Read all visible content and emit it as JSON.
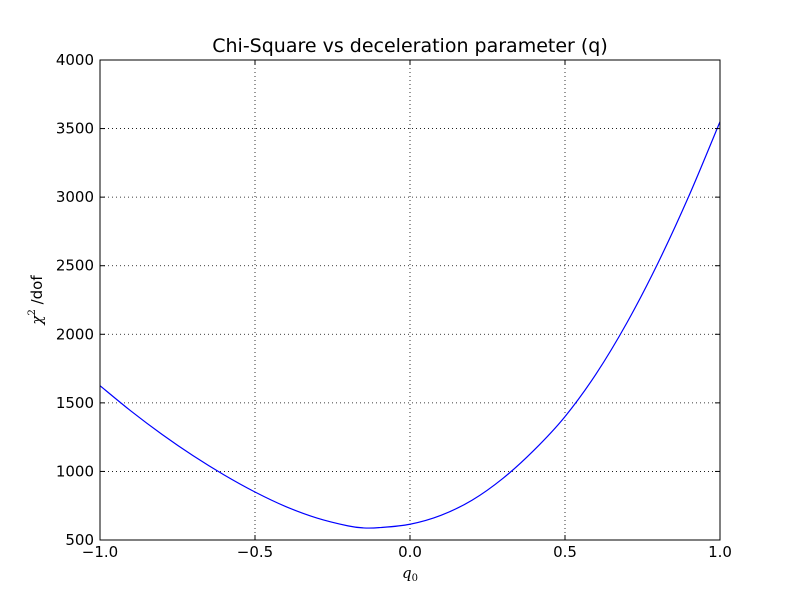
{
  "chart_data": {
    "type": "line",
    "title": "Chi-Square vs deceleration parameter (q)",
    "xlabel": {
      "symbol": "q",
      "subscript": "0"
    },
    "ylabel": {
      "symbol": "χ",
      "superscript": "2",
      "suffix": " /dof"
    },
    "xlim": [
      -1.0,
      1.0
    ],
    "ylim": [
      500,
      4000
    ],
    "xticks": [
      -1.0,
      -0.5,
      0.0,
      0.5,
      1.0
    ],
    "xtick_labels": [
      "−1.0",
      "−0.5",
      "0.0",
      "0.5",
      "1.0"
    ],
    "yticks": [
      500,
      1000,
      1500,
      2000,
      2500,
      3000,
      3500,
      4000
    ],
    "ytick_labels": [
      "500",
      "1000",
      "1500",
      "2000",
      "2500",
      "3000",
      "3500",
      "4000"
    ],
    "grid": true,
    "line_color": "#0000ff",
    "series": [
      {
        "x": [
          -1.0,
          -0.9,
          -0.8,
          -0.7,
          -0.6,
          -0.5,
          -0.4,
          -0.3,
          -0.2,
          -0.15,
          -0.1,
          0.0,
          0.1,
          0.2,
          0.3,
          0.4,
          0.5,
          0.6,
          0.7,
          0.8,
          0.9,
          1.0
        ],
        "y": [
          1625,
          1440,
          1270,
          1115,
          975,
          850,
          743,
          660,
          603,
          588,
          590,
          615,
          680,
          790,
          950,
          1155,
          1400,
          1710,
          2085,
          2520,
          3010,
          3550
        ]
      }
    ]
  }
}
